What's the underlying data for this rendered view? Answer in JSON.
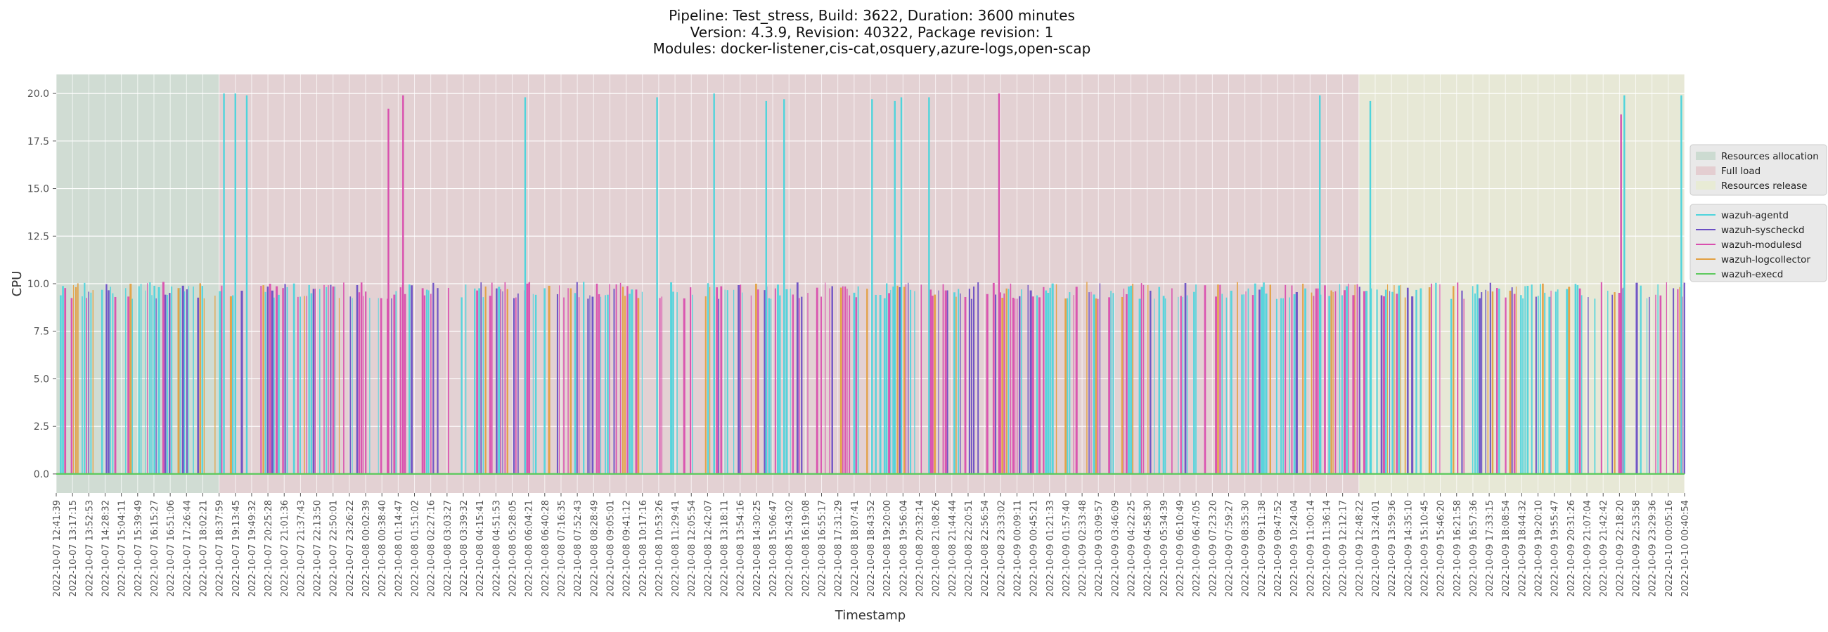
{
  "chart_data": {
    "type": "line",
    "title_lines": [
      "Pipeline: Test_stress, Build: 3622, Duration: 3600 minutes",
      "Version: 4.3.9, Revision: 40322, Package revision: 1",
      "Modules: docker-listener,cis-cat,osquery,azure-logs,open-scap"
    ],
    "xlabel": "Timestamp",
    "ylabel": "CPU",
    "ylim": [
      -1.0,
      21.0
    ],
    "yticks": [
      0.0,
      2.5,
      5.0,
      7.5,
      10.0,
      12.5,
      15.0,
      17.5,
      20.0
    ],
    "ytick_labels": [
      "0.0",
      "2.5",
      "5.0",
      "7.5",
      "10.0",
      "12.5",
      "15.0",
      "17.5",
      "20.0"
    ],
    "x_tick_labels": [
      "2022-10-07 12:41:39",
      "2022-10-07 13:17:15",
      "2022-10-07 13:52:53",
      "2022-10-07 14:28:32",
      "2022-10-07 15:04:11",
      "2022-10-07 15:39:49",
      "2022-10-07 16:15:27",
      "2022-10-07 16:51:06",
      "2022-10-07 17:26:44",
      "2022-10-07 18:02:21",
      "2022-10-07 18:37:59",
      "2022-10-07 19:13:45",
      "2022-10-07 19:49:32",
      "2022-10-07 20:25:28",
      "2022-10-07 21:01:36",
      "2022-10-07 21:37:43",
      "2022-10-07 22:13:50",
      "2022-10-07 22:50:01",
      "2022-10-07 23:26:22",
      "2022-10-08 00:02:39",
      "2022-10-08 00:38:40",
      "2022-10-08 01:14:47",
      "2022-10-08 01:51:02",
      "2022-10-08 02:27:16",
      "2022-10-08 03:03:27",
      "2022-10-08 03:39:32",
      "2022-10-08 04:15:41",
      "2022-10-08 04:51:53",
      "2022-10-08 05:28:05",
      "2022-10-08 06:04:21",
      "2022-10-08 06:40:28",
      "2022-10-08 07:16:35",
      "2022-10-08 07:52:43",
      "2022-10-08 08:28:49",
      "2022-10-08 09:05:01",
      "2022-10-08 09:41:12",
      "2022-10-08 10:17:16",
      "2022-10-08 10:53:26",
      "2022-10-08 11:29:41",
      "2022-10-08 12:05:54",
      "2022-10-08 12:42:07",
      "2022-10-08 13:18:11",
      "2022-10-08 13:54:16",
      "2022-10-08 14:30:25",
      "2022-10-08 15:06:47",
      "2022-10-08 15:43:02",
      "2022-10-08 16:19:08",
      "2022-10-08 16:55:17",
      "2022-10-08 17:31:29",
      "2022-10-08 18:07:41",
      "2022-10-08 18:43:52",
      "2022-10-08 19:20:00",
      "2022-10-08 19:56:04",
      "2022-10-08 20:32:14",
      "2022-10-08 21:08:26",
      "2022-10-08 21:44:44",
      "2022-10-08 22:20:51",
      "2022-10-08 22:56:54",
      "2022-10-08 23:33:02",
      "2022-10-09 00:09:11",
      "2022-10-09 00:45:21",
      "2022-10-09 01:21:33",
      "2022-10-09 01:57:40",
      "2022-10-09 02:33:48",
      "2022-10-09 03:09:57",
      "2022-10-09 03:46:09",
      "2022-10-09 04:22:25",
      "2022-10-09 04:58:30",
      "2022-10-09 05:34:39",
      "2022-10-09 06:10:49",
      "2022-10-09 06:47:05",
      "2022-10-09 07:23:20",
      "2022-10-09 07:59:27",
      "2022-10-09 08:35:30",
      "2022-10-09 09:11:38",
      "2022-10-09 09:47:52",
      "2022-10-09 10:24:04",
      "2022-10-09 11:00:14",
      "2022-10-09 11:36:14",
      "2022-10-09 12:12:17",
      "2022-10-09 12:48:22",
      "2022-10-09 13:24:01",
      "2022-10-09 13:59:36",
      "2022-10-09 14:35:10",
      "2022-10-09 15:10:45",
      "2022-10-09 15:46:20",
      "2022-10-09 16:21:58",
      "2022-10-09 16:57:36",
      "2022-10-09 17:33:15",
      "2022-10-09 18:08:54",
      "2022-10-09 18:44:32",
      "2022-10-09 19:20:10",
      "2022-10-09 19:55:47",
      "2022-10-09 20:31:26",
      "2022-10-09 21:07:04",
      "2022-10-09 21:42:42",
      "2022-10-09 22:18:20",
      "2022-10-09 22:53:58",
      "2022-10-09 23:29:36",
      "2022-10-10 00:05:16",
      "2022-10-10 00:40:54"
    ],
    "phases": [
      {
        "name": "Resources allocation",
        "start_index": 0,
        "end_index": 10,
        "color": "#b5d0bd"
      },
      {
        "name": "Full load",
        "start_index": 10,
        "end_index": 80,
        "color": "#e0b8bd"
      },
      {
        "name": "Resources release",
        "start_index": 80,
        "end_index": 100,
        "color": "#e8ecc4"
      }
    ],
    "series": [
      {
        "name": "wazuh-agentd",
        "color": "#4fd4dc",
        "baseline": 0.0,
        "spike_indices": [
          10.3,
          11.0,
          11.7,
          28.8,
          36.9,
          40.4,
          43.6,
          44.7,
          50.1,
          51.5,
          51.9,
          53.6,
          77.6,
          80.7,
          96.3,
          99.8
        ],
        "spike_values": [
          20.0,
          20.0,
          19.9,
          19.8,
          19.8,
          20.0,
          19.6,
          19.7,
          19.7,
          19.6,
          19.8,
          19.8,
          19.9,
          19.6,
          19.9,
          19.9
        ],
        "level": 10.0
      },
      {
        "name": "wazuh-syscheckd",
        "color": "#6b4fc4",
        "baseline": 0.0,
        "level": 10.0
      },
      {
        "name": "wazuh-modulesd",
        "color": "#d94fae",
        "baseline": 0.0,
        "spike_indices": [
          20.4,
          21.3,
          57.9,
          96.1
        ],
        "spike_values": [
          19.2,
          19.9,
          20.0,
          18.9
        ],
        "level": 10.0
      },
      {
        "name": "wazuh-logcollector",
        "color": "#e3a042",
        "baseline": 0.0,
        "level": 10.0
      },
      {
        "name": "wazuh-execd",
        "color": "#5ec95e",
        "baseline": 0.0,
        "level": 0.0
      }
    ],
    "legend_position": "right",
    "grid": true
  }
}
